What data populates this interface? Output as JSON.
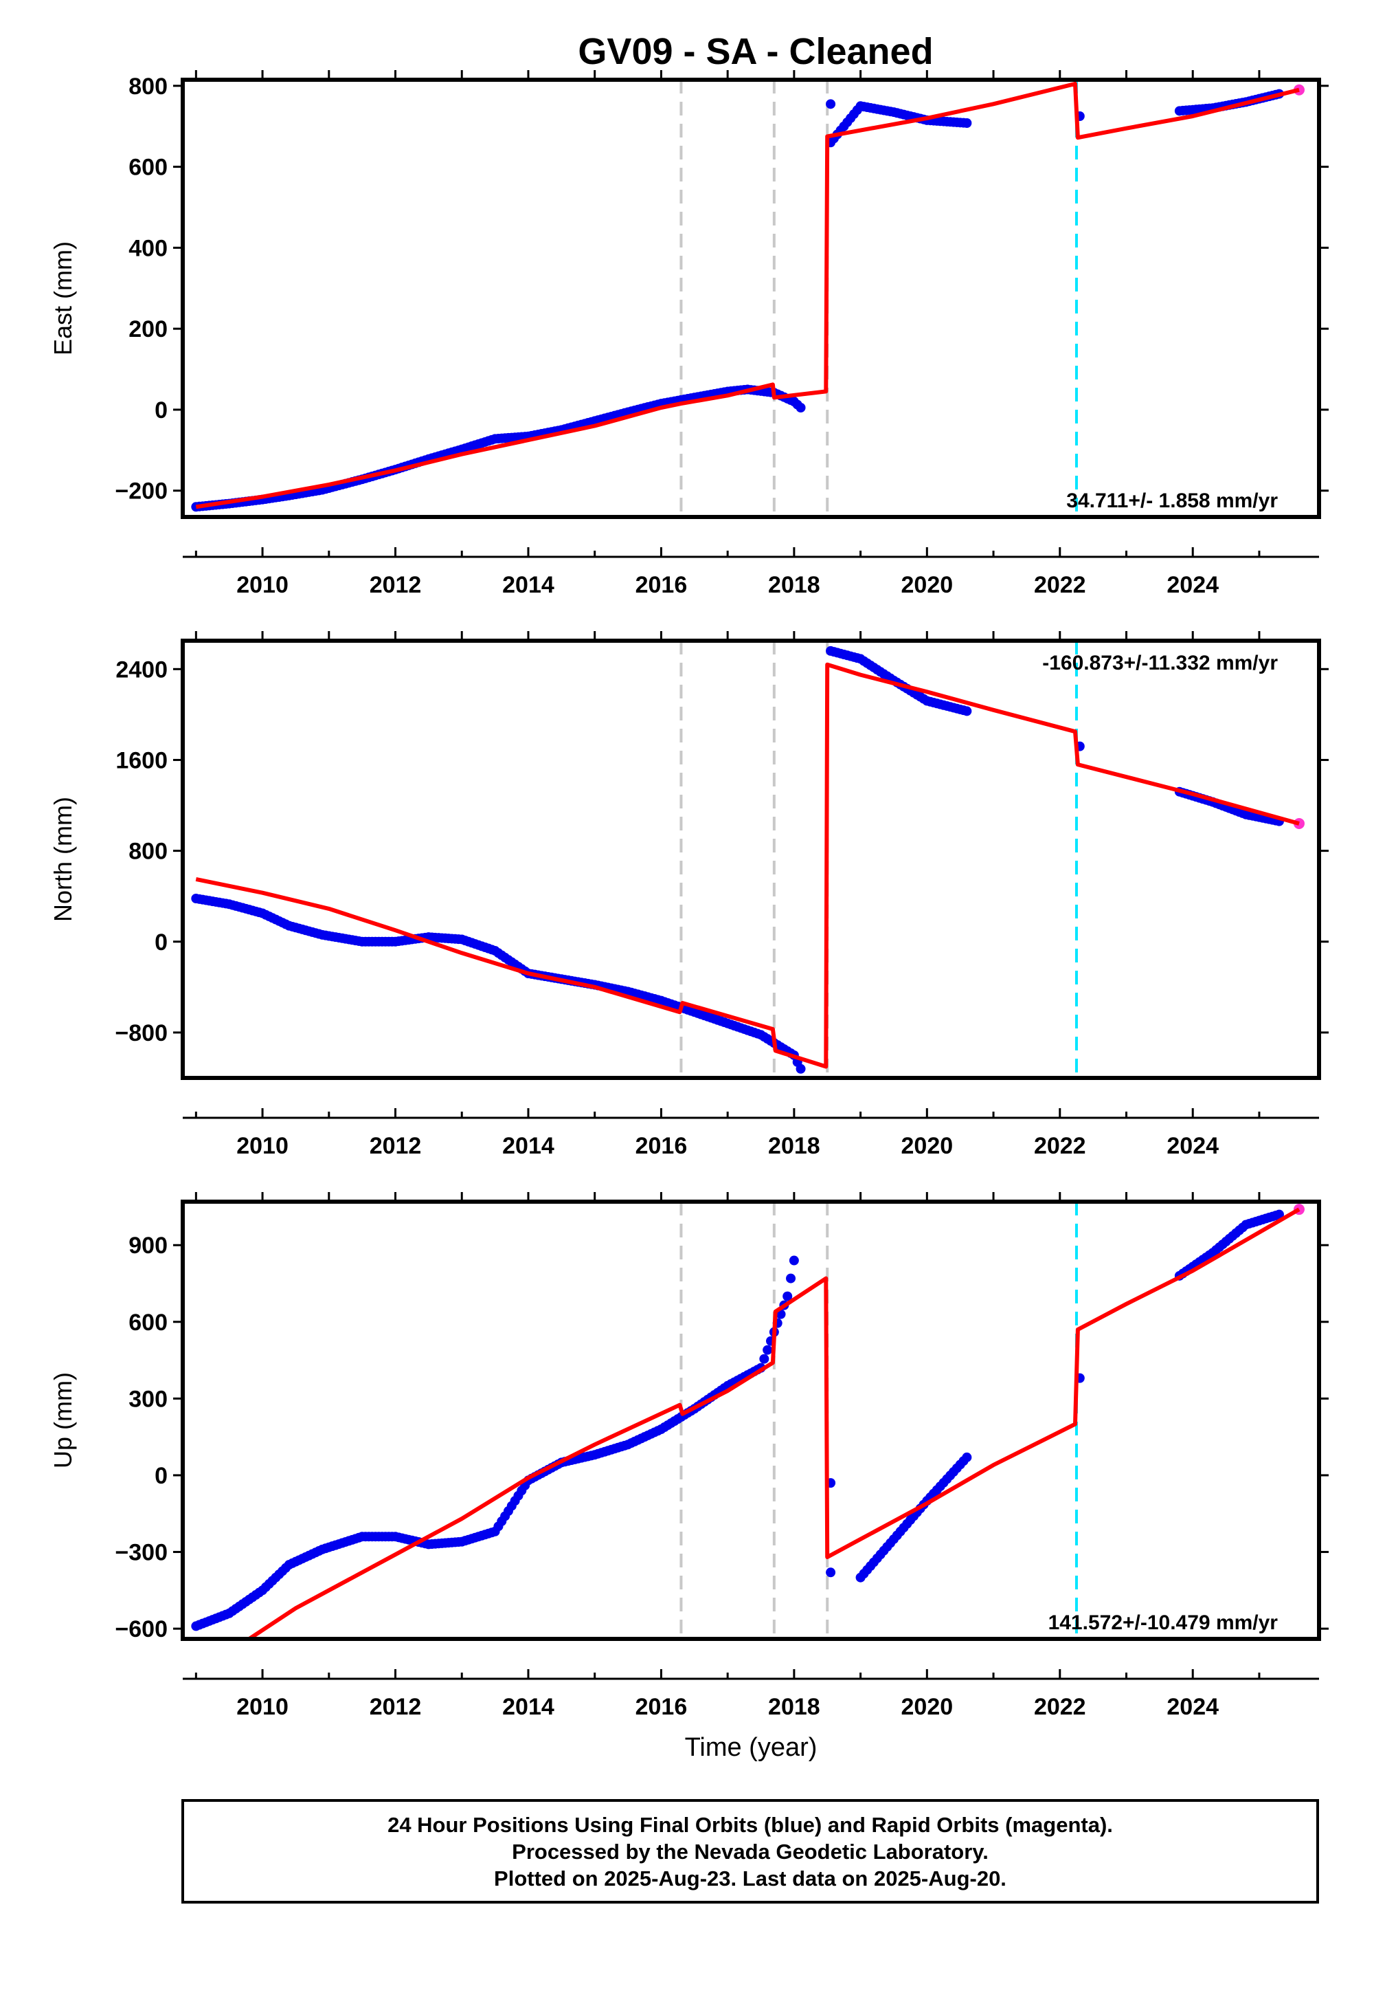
{
  "title": "GV09  - SA - Cleaned",
  "footer": {
    "line1": "24 Hour Positions Using Final Orbits (blue) and Rapid Orbits (magenta).",
    "line2": "Processed by the Nevada Geodetic Laboratory.",
    "line3": "Plotted on 2025-Aug-23. Last data on 2025-Aug-20."
  },
  "colors": {
    "final_orbits": "#0000ee",
    "rapid_orbits": "#ff33cc",
    "model": "#ff0000",
    "equipment_change": "#c8c8c8",
    "earthquake": "#00e5ff"
  },
  "chart_data": [
    {
      "type": "scatter",
      "panel": "east",
      "ylabel": "East (mm)",
      "xlabel": "",
      "xlim": [
        2008.8,
        2025.9
      ],
      "ylim": [
        -265,
        815
      ],
      "xticks": [
        2010,
        2012,
        2014,
        2016,
        2018,
        2020,
        2022,
        2024
      ],
      "yticks": [
        -200,
        0,
        200,
        400,
        600,
        800
      ],
      "ytick_labels": [
        "−200",
        "0",
        "200",
        "400",
        "600",
        "800"
      ],
      "rate_label": "34.711+/- 1.858 mm/yr",
      "rate_label_position": "bottom-right",
      "vlines": [
        {
          "x": 2016.3,
          "kind": "equipment_change"
        },
        {
          "x": 2017.7,
          "kind": "equipment_change"
        },
        {
          "x": 2018.5,
          "kind": "equipment_change"
        },
        {
          "x": 2022.25,
          "kind": "earthquake"
        }
      ],
      "model": [
        {
          "x": 2009.0,
          "y": -240
        },
        {
          "x": 2010.0,
          "y": -215
        },
        {
          "x": 2011.0,
          "y": -185
        },
        {
          "x": 2012.0,
          "y": -150
        },
        {
          "x": 2013.0,
          "y": -110
        },
        {
          "x": 2014.0,
          "y": -75
        },
        {
          "x": 2015.0,
          "y": -40
        },
        {
          "x": 2016.0,
          "y": 5
        },
        {
          "x": 2016.3,
          "y": 15
        },
        {
          "x": 2017.0,
          "y": 35
        },
        {
          "x": 2017.68,
          "y": 62
        },
        {
          "x": 2017.7,
          "y": 30
        },
        {
          "x": 2018.48,
          "y": 45
        },
        {
          "x": 2018.5,
          "y": 675
        },
        {
          "x": 2019.0,
          "y": 690
        },
        {
          "x": 2020.0,
          "y": 720
        },
        {
          "x": 2021.0,
          "y": 755
        },
        {
          "x": 2022.23,
          "y": 805
        },
        {
          "x": 2022.27,
          "y": 672
        },
        {
          "x": 2023.0,
          "y": 695
        },
        {
          "x": 2024.0,
          "y": 725
        },
        {
          "x": 2025.6,
          "y": 790
        }
      ],
      "final": [
        {
          "x": 2009.0,
          "y": -240
        },
        {
          "x": 2009.5,
          "y": -232
        },
        {
          "x": 2010.0,
          "y": -222
        },
        {
          "x": 2010.4,
          "y": -212
        },
        {
          "x": 2010.9,
          "y": -198
        },
        {
          "x": 2011.5,
          "y": -172
        },
        {
          "x": 2012.0,
          "y": -148
        },
        {
          "x": 2012.5,
          "y": -122
        },
        {
          "x": 2013.0,
          "y": -98
        },
        {
          "x": 2013.5,
          "y": -72
        },
        {
          "x": 2014.0,
          "y": -66
        },
        {
          "x": 2014.5,
          "y": -50
        },
        {
          "x": 2015.0,
          "y": -28
        },
        {
          "x": 2015.5,
          "y": -6
        },
        {
          "x": 2016.0,
          "y": 15
        },
        {
          "x": 2016.5,
          "y": 30
        },
        {
          "x": 2017.0,
          "y": 45
        },
        {
          "x": 2017.3,
          "y": 50
        },
        {
          "x": 2017.7,
          "y": 42
        },
        {
          "x": 2018.0,
          "y": 20
        },
        {
          "x": 2018.1,
          "y": 5
        },
        {
          "x": 2018.55,
          "y": 755
        },
        {
          "x": 2018.55,
          "y": 660
        },
        {
          "x": 2019.0,
          "y": 750
        },
        {
          "x": 2019.5,
          "y": 735
        },
        {
          "x": 2020.0,
          "y": 715
        },
        {
          "x": 2020.6,
          "y": 708
        },
        {
          "x": 2022.3,
          "y": 725
        },
        {
          "x": 2023.8,
          "y": 738
        },
        {
          "x": 2024.3,
          "y": 745
        },
        {
          "x": 2024.8,
          "y": 760
        },
        {
          "x": 2025.3,
          "y": 780
        }
      ],
      "rapid": [
        {
          "x": 2025.6,
          "y": 790
        }
      ]
    },
    {
      "type": "scatter",
      "panel": "north",
      "ylabel": "North (mm)",
      "xlabel": "",
      "xlim": [
        2008.8,
        2025.9
      ],
      "ylim": [
        -1200,
        2650
      ],
      "xticks": [
        2010,
        2012,
        2014,
        2016,
        2018,
        2020,
        2022,
        2024
      ],
      "yticks": [
        -800,
        0,
        800,
        1600,
        2400
      ],
      "ytick_labels": [
        "−800",
        "0",
        "800",
        "1600",
        "2400"
      ],
      "rate_label": "-160.873+/-11.332 mm/yr",
      "rate_label_position": "top-right",
      "vlines": [
        {
          "x": 2016.3,
          "kind": "equipment_change"
        },
        {
          "x": 2017.7,
          "kind": "equipment_change"
        },
        {
          "x": 2018.5,
          "kind": "equipment_change"
        },
        {
          "x": 2022.25,
          "kind": "earthquake"
        }
      ],
      "model": [
        {
          "x": 2009.0,
          "y": 550
        },
        {
          "x": 2010.0,
          "y": 430
        },
        {
          "x": 2011.0,
          "y": 290
        },
        {
          "x": 2012.0,
          "y": 100
        },
        {
          "x": 2013.0,
          "y": -100
        },
        {
          "x": 2014.0,
          "y": -280
        },
        {
          "x": 2015.0,
          "y": -400
        },
        {
          "x": 2016.28,
          "y": -620
        },
        {
          "x": 2016.32,
          "y": -540
        },
        {
          "x": 2017.68,
          "y": -770
        },
        {
          "x": 2017.72,
          "y": -960
        },
        {
          "x": 2018.48,
          "y": -1100
        },
        {
          "x": 2018.5,
          "y": 2440
        },
        {
          "x": 2019.0,
          "y": 2350
        },
        {
          "x": 2020.0,
          "y": 2200
        },
        {
          "x": 2021.0,
          "y": 2040
        },
        {
          "x": 2022.23,
          "y": 1850
        },
        {
          "x": 2022.27,
          "y": 1560
        },
        {
          "x": 2023.0,
          "y": 1450
        },
        {
          "x": 2024.0,
          "y": 1300
        },
        {
          "x": 2025.6,
          "y": 1040
        }
      ],
      "final": [
        {
          "x": 2009.0,
          "y": 380
        },
        {
          "x": 2009.5,
          "y": 330
        },
        {
          "x": 2010.0,
          "y": 250
        },
        {
          "x": 2010.4,
          "y": 140
        },
        {
          "x": 2010.9,
          "y": 60
        },
        {
          "x": 2011.5,
          "y": 0
        },
        {
          "x": 2012.0,
          "y": 0
        },
        {
          "x": 2012.5,
          "y": 40
        },
        {
          "x": 2013.0,
          "y": 20
        },
        {
          "x": 2013.5,
          "y": -80
        },
        {
          "x": 2014.0,
          "y": -280
        },
        {
          "x": 2014.5,
          "y": -330
        },
        {
          "x": 2015.0,
          "y": -380
        },
        {
          "x": 2015.5,
          "y": -440
        },
        {
          "x": 2016.0,
          "y": -520
        },
        {
          "x": 2016.5,
          "y": -620
        },
        {
          "x": 2017.0,
          "y": -720
        },
        {
          "x": 2017.5,
          "y": -820
        },
        {
          "x": 2018.0,
          "y": -1000
        },
        {
          "x": 2018.1,
          "y": -1120
        },
        {
          "x": 2018.55,
          "y": 2560
        },
        {
          "x": 2019.0,
          "y": 2490
        },
        {
          "x": 2019.5,
          "y": 2300
        },
        {
          "x": 2020.0,
          "y": 2120
        },
        {
          "x": 2020.6,
          "y": 2030
        },
        {
          "x": 2022.3,
          "y": 1720
        },
        {
          "x": 2023.8,
          "y": 1320
        },
        {
          "x": 2024.3,
          "y": 1230
        },
        {
          "x": 2024.8,
          "y": 1120
        },
        {
          "x": 2025.3,
          "y": 1060
        }
      ],
      "rapid": [
        {
          "x": 2025.6,
          "y": 1040
        }
      ]
    },
    {
      "type": "scatter",
      "panel": "up",
      "ylabel": "Up (mm)",
      "xlabel": "Time (year)",
      "xlim": [
        2008.8,
        2025.9
      ],
      "ylim": [
        -640,
        1070
      ],
      "xticks": [
        2010,
        2012,
        2014,
        2016,
        2018,
        2020,
        2022,
        2024
      ],
      "yticks": [
        -600,
        -300,
        0,
        300,
        600,
        900
      ],
      "ytick_labels": [
        "−600",
        "−300",
        "0",
        "300",
        "600",
        "900"
      ],
      "rate_label": "141.572+/-10.479 mm/yr",
      "rate_label_position": "bottom-right",
      "vlines": [
        {
          "x": 2016.3,
          "kind": "equipment_change"
        },
        {
          "x": 2017.7,
          "kind": "equipment_change"
        },
        {
          "x": 2018.5,
          "kind": "equipment_change"
        },
        {
          "x": 2022.25,
          "kind": "earthquake"
        }
      ],
      "model": [
        {
          "x": 2009.8,
          "y": -640
        },
        {
          "x": 2010.5,
          "y": -520
        },
        {
          "x": 2011.0,
          "y": -450
        },
        {
          "x": 2012.0,
          "y": -310
        },
        {
          "x": 2013.0,
          "y": -170
        },
        {
          "x": 2014.0,
          "y": -10
        },
        {
          "x": 2015.0,
          "y": 120
        },
        {
          "x": 2016.28,
          "y": 275
        },
        {
          "x": 2016.32,
          "y": 240
        },
        {
          "x": 2017.0,
          "y": 330
        },
        {
          "x": 2017.68,
          "y": 440
        },
        {
          "x": 2017.72,
          "y": 640
        },
        {
          "x": 2018.48,
          "y": 770
        },
        {
          "x": 2018.5,
          "y": -320
        },
        {
          "x": 2019.0,
          "y": -250
        },
        {
          "x": 2020.0,
          "y": -110
        },
        {
          "x": 2021.0,
          "y": 40
        },
        {
          "x": 2022.23,
          "y": 200
        },
        {
          "x": 2022.27,
          "y": 570
        },
        {
          "x": 2023.0,
          "y": 670
        },
        {
          "x": 2024.0,
          "y": 800
        },
        {
          "x": 2025.6,
          "y": 1040
        }
      ],
      "final": [
        {
          "x": 2009.0,
          "y": -590
        },
        {
          "x": 2009.5,
          "y": -540
        },
        {
          "x": 2010.0,
          "y": -450
        },
        {
          "x": 2010.4,
          "y": -350
        },
        {
          "x": 2010.9,
          "y": -290
        },
        {
          "x": 2011.5,
          "y": -240
        },
        {
          "x": 2012.0,
          "y": -240
        },
        {
          "x": 2012.5,
          "y": -270
        },
        {
          "x": 2013.0,
          "y": -260
        },
        {
          "x": 2013.5,
          "y": -220
        },
        {
          "x": 2014.0,
          "y": -20
        },
        {
          "x": 2014.5,
          "y": 50
        },
        {
          "x": 2015.0,
          "y": 80
        },
        {
          "x": 2015.5,
          "y": 120
        },
        {
          "x": 2016.0,
          "y": 180
        },
        {
          "x": 2016.5,
          "y": 260
        },
        {
          "x": 2017.0,
          "y": 350
        },
        {
          "x": 2017.5,
          "y": 420
        },
        {
          "x": 2017.9,
          "y": 700
        },
        {
          "x": 2018.0,
          "y": 840
        },
        {
          "x": 2018.55,
          "y": -380
        },
        {
          "x": 2018.55,
          "y": -30
        },
        {
          "x": 2019.0,
          "y": -400
        },
        {
          "x": 2019.5,
          "y": -250
        },
        {
          "x": 2020.0,
          "y": -100
        },
        {
          "x": 2020.6,
          "y": 70
        },
        {
          "x": 2022.3,
          "y": 380
        },
        {
          "x": 2023.8,
          "y": 780
        },
        {
          "x": 2024.3,
          "y": 870
        },
        {
          "x": 2024.8,
          "y": 980
        },
        {
          "x": 2025.3,
          "y": 1020
        }
      ],
      "rapid": [
        {
          "x": 2025.6,
          "y": 1040
        }
      ]
    }
  ]
}
